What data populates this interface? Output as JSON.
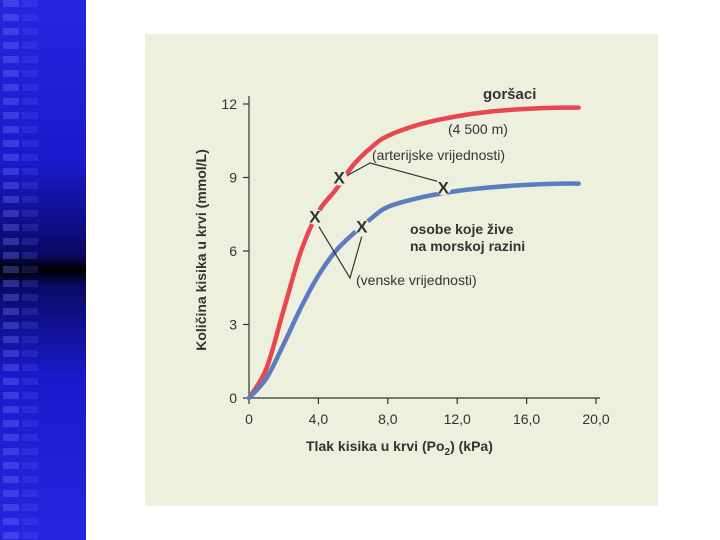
{
  "colors": {
    "sidebar": "#1a1acc",
    "panel_background": "#eef0de",
    "red_curve": "#e8474f",
    "blue_curve": "#5b7cc0"
  },
  "chart_data": {
    "type": "line",
    "xlabel": "Tlak kisika u krvi (Po",
    "xlabel_sub": "2",
    "xlabel_unit": ") (kPa)",
    "ylabel": "Količina kisika u krvi (mmol/L)",
    "xlim": [
      0,
      20.0
    ],
    "ylim": [
      0,
      12
    ],
    "x_ticks": [
      {
        "value": 0,
        "label": "0"
      },
      {
        "value": 4,
        "label": "4,0"
      },
      {
        "value": 8,
        "label": "8,0"
      },
      {
        "value": 12,
        "label": "12,0"
      },
      {
        "value": 16,
        "label": "16,0"
      },
      {
        "value": 20,
        "label": "20,0"
      }
    ],
    "y_ticks": [
      {
        "value": 0,
        "label": "0"
      },
      {
        "value": 3,
        "label": "3"
      },
      {
        "value": 6,
        "label": "6"
      },
      {
        "value": 9,
        "label": "9"
      },
      {
        "value": 12,
        "label": "12"
      }
    ],
    "series": [
      {
        "name": "goršaci",
        "color": "#e8474f",
        "x": [
          0,
          1.0,
          2.0,
          3.0,
          4.0,
          5.0,
          6.0,
          7.0,
          8.0,
          10.0,
          12.0,
          14.0,
          16.0,
          18.0,
          19.0
        ],
        "y": [
          0,
          1.2,
          3.6,
          6.0,
          7.6,
          8.5,
          9.5,
          10.2,
          10.7,
          11.2,
          11.5,
          11.7,
          11.8,
          11.85,
          11.85
        ]
      },
      {
        "name": "osobe koje žive na morskoj razini",
        "color": "#5b7cc0",
        "x": [
          0,
          1.0,
          2.0,
          3.0,
          4.0,
          5.0,
          6.0,
          7.0,
          8.0,
          10.0,
          12.0,
          14.0,
          16.0,
          18.0,
          19.0
        ],
        "y": [
          0,
          0.8,
          2.2,
          3.7,
          5.0,
          6.0,
          6.7,
          7.3,
          7.8,
          8.2,
          8.45,
          8.6,
          8.7,
          8.75,
          8.75
        ]
      }
    ],
    "markers": [
      {
        "name": "red-arterial",
        "x": 5.2,
        "y": 9.0,
        "label": "X"
      },
      {
        "name": "blue-arterial",
        "x": 11.2,
        "y": 8.6,
        "label": "X"
      },
      {
        "name": "red-venous",
        "x": 3.8,
        "y": 7.4,
        "label": "X"
      },
      {
        "name": "blue-venous",
        "x": 6.5,
        "y": 7.0,
        "label": "X"
      }
    ],
    "annotations": {
      "high_title": "goršaci",
      "high_altitude": "(4 500 m)",
      "arterial": "(arterijske vrijednosti)",
      "sea_line1": "osobe koje žive",
      "sea_line2": "na morskoj razini",
      "venous": "(venske vrijednosti)"
    }
  }
}
